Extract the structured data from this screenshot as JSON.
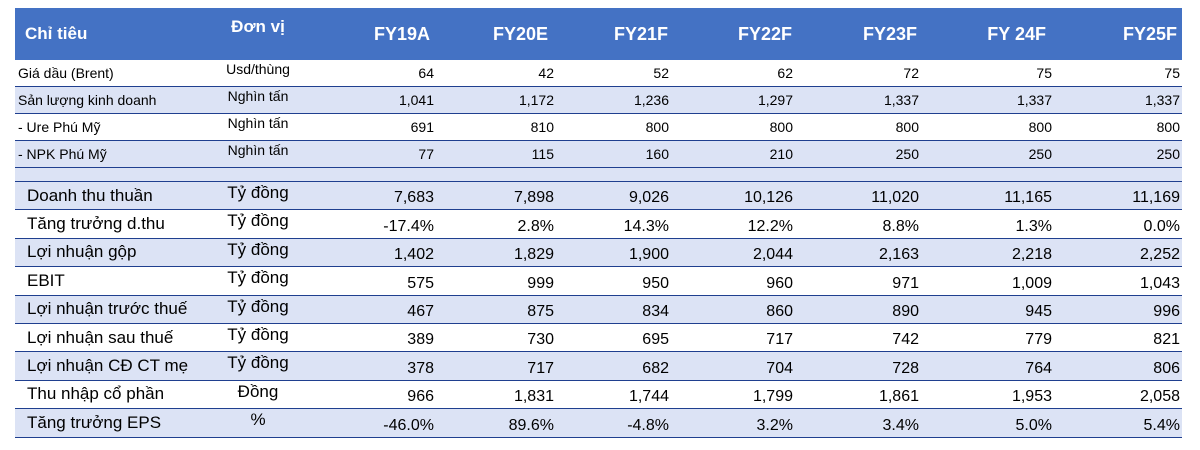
{
  "header": {
    "label": "Chỉ tiêu",
    "unit": "Đơn vị",
    "years": [
      "FY19A",
      "FY20E",
      "FY21F",
      "FY22F",
      "FY23F",
      "FY 24F",
      "FY25F"
    ]
  },
  "operating_rows": [
    {
      "label": "Giá dầu  (Brent)",
      "unit": "Usd/thùng",
      "values": [
        "64",
        "42",
        "52",
        "62",
        "72",
        "75",
        "75"
      ]
    },
    {
      "label": "Sản lượng kinh doanh",
      "unit": "Nghìn tấn",
      "values": [
        "1,041",
        "1,172",
        "1,236",
        "1,297",
        "1,337",
        "1,337",
        "1,337"
      ]
    },
    {
      "label": "- Ure Phú Mỹ",
      "unit": "Nghìn tấn",
      "values": [
        "691",
        "810",
        "800",
        "800",
        "800",
        "800",
        "800"
      ]
    },
    {
      "label": "- NPK Phú Mỹ",
      "unit": "Nghìn tấn",
      "values": [
        "77",
        "115",
        "160",
        "210",
        "250",
        "250",
        "250"
      ]
    }
  ],
  "financial_rows": [
    {
      "label": "Doanh thu thuần",
      "unit": "Tỷ đồng",
      "values": [
        "7,683",
        "7,898",
        "9,026",
        "10,126",
        "11,020",
        "11,165",
        "11,169"
      ]
    },
    {
      "label": "Tăng trưởng d.thu",
      "unit": "Tỷ đồng",
      "values": [
        "-17.4%",
        "2.8%",
        "14.3%",
        "12.2%",
        "8.8%",
        "1.3%",
        "0.0%"
      ]
    },
    {
      "label": "Lợi nhuận gộp",
      "unit": "Tỷ đồng",
      "values": [
        "1,402",
        "1,829",
        "1,900",
        "2,044",
        "2,163",
        "2,218",
        "2,252"
      ]
    },
    {
      "label": "EBIT",
      "unit": "Tỷ đồng",
      "values": [
        "575",
        "999",
        "950",
        "960",
        "971",
        "1,009",
        "1,043"
      ]
    },
    {
      "label": "Lợi nhuận trước thuế",
      "unit": "Tỷ đồng",
      "values": [
        "467",
        "875",
        "834",
        "860",
        "890",
        "945",
        "996"
      ]
    },
    {
      "label": "Lợi nhuận sau thuế",
      "unit": "Tỷ đồng",
      "values": [
        "389",
        "730",
        "695",
        "717",
        "742",
        "779",
        "821"
      ]
    },
    {
      "label": "Lợi nhuận CĐ CT mẹ",
      "unit": "Tỷ đồng",
      "values": [
        "378",
        "717",
        "682",
        "704",
        "728",
        "764",
        "806"
      ]
    },
    {
      "label": "Thu nhập cổ phần",
      "unit": "Đồng",
      "values": [
        "966",
        "1,831",
        "1,744",
        "1,799",
        "1,861",
        "1,953",
        "2,058"
      ]
    },
    {
      "label": "Tăng trưởng EPS",
      "unit": "%",
      "values": [
        "-46.0%",
        "89.6%",
        "-4.8%",
        "3.2%",
        "3.4%",
        "5.0%",
        "5.4%"
      ]
    }
  ],
  "colors": {
    "header_bg": "#4472c4",
    "band": "#dce3f5",
    "rule": "#1f3f8f"
  }
}
